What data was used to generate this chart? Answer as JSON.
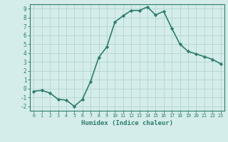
{
  "xlabel": "Humidex (Indice chaleur)",
  "ylabel": "",
  "x": [
    0,
    1,
    2,
    3,
    4,
    5,
    6,
    7,
    8,
    9,
    10,
    11,
    12,
    13,
    14,
    15,
    16,
    17,
    18,
    19,
    20,
    21,
    22,
    23
  ],
  "y": [
    -0.3,
    -0.2,
    -0.5,
    -1.2,
    -1.3,
    -2.0,
    -1.2,
    0.8,
    3.5,
    4.7,
    7.5,
    8.2,
    8.8,
    8.8,
    9.2,
    8.3,
    8.7,
    6.8,
    5.0,
    4.2,
    3.9,
    3.6,
    3.3,
    2.8
  ],
  "line_color": "#2e7d6e",
  "marker": "D",
  "marker_size": 2.2,
  "background_color": "#d4ecea",
  "grid_color": "#b8d8d4",
  "ylim": [
    -2.5,
    9.5
  ],
  "xlim": [
    -0.5,
    23.5
  ],
  "yticks": [
    -2,
    -1,
    0,
    1,
    2,
    3,
    4,
    5,
    6,
    7,
    8,
    9
  ],
  "xticks": [
    0,
    1,
    2,
    3,
    4,
    5,
    6,
    7,
    8,
    9,
    10,
    11,
    12,
    13,
    14,
    15,
    16,
    17,
    18,
    19,
    20,
    21,
    22,
    23
  ],
  "tick_color": "#2e7d6e",
  "label_color": "#2e7d6e",
  "line_width": 1.2
}
